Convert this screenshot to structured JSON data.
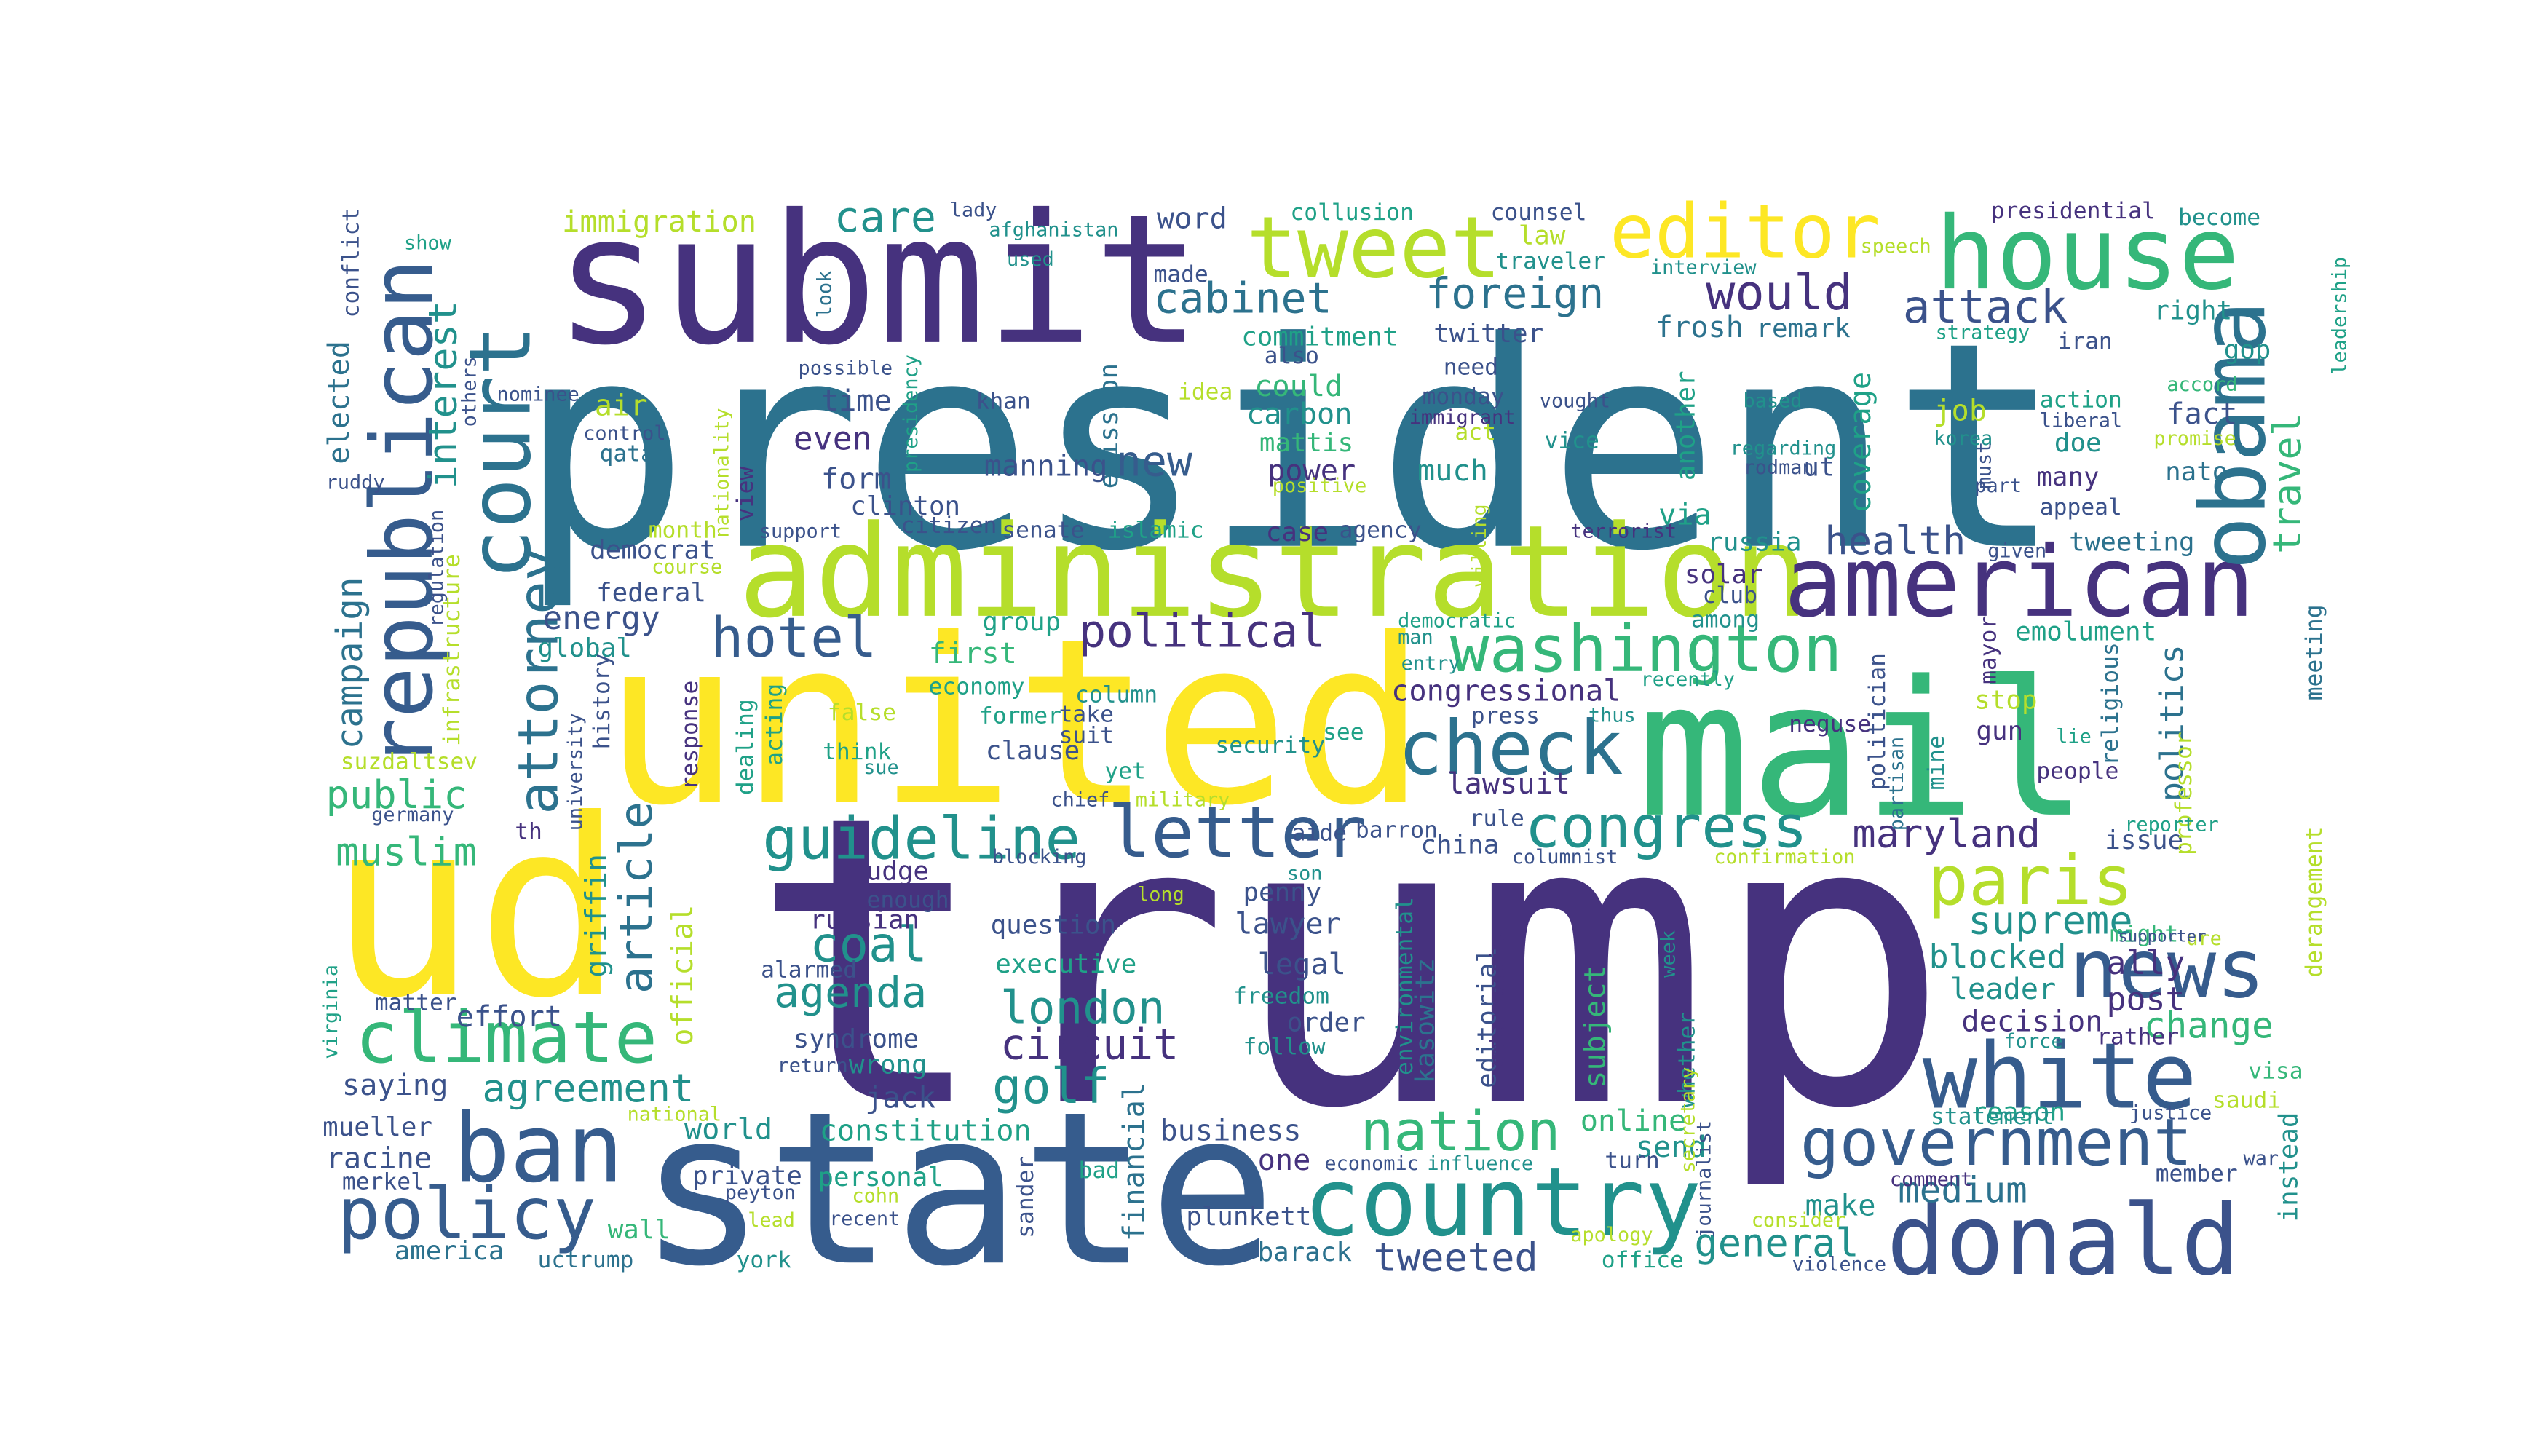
{
  "palette": {
    "dark_purple": "#46327e",
    "indigo": "#3b528b",
    "blue": "#365c8d",
    "steel": "#2c728e",
    "teal": "#21918c",
    "green_teal": "#1fa187",
    "green": "#35b779",
    "lime": "#6ece58",
    "yellow_green": "#b5de2b",
    "yellow": "#fde725"
  },
  "words": [
    {
      "text": "trump"
    },
    {
      "text": "president"
    },
    {
      "text": "united"
    },
    {
      "text": "state"
    },
    {
      "text": "ud"
    },
    {
      "text": "submit"
    },
    {
      "text": "mail"
    },
    {
      "text": "administration"
    },
    {
      "text": "american"
    },
    {
      "text": "house"
    },
    {
      "text": "obama"
    },
    {
      "text": "donald"
    },
    {
      "text": "white"
    },
    {
      "text": "news"
    },
    {
      "text": "country"
    },
    {
      "text": "republican"
    },
    {
      "text": "court"
    },
    {
      "text": "tweet"
    },
    {
      "text": "editor"
    },
    {
      "text": "ban"
    },
    {
      "text": "climate"
    },
    {
      "text": "policy"
    },
    {
      "text": "government"
    },
    {
      "text": "letter"
    },
    {
      "text": "check"
    },
    {
      "text": "washington"
    },
    {
      "text": "paris"
    },
    {
      "text": "guideline"
    },
    {
      "text": "congress"
    },
    {
      "text": "attorney"
    },
    {
      "text": "nation"
    },
    {
      "text": "hotel"
    },
    {
      "text": "would"
    },
    {
      "text": "cabinet"
    },
    {
      "text": "political"
    },
    {
      "text": "coal"
    },
    {
      "text": "golf"
    },
    {
      "text": "london"
    },
    {
      "text": "muslim"
    },
    {
      "text": "agreement"
    },
    {
      "text": "maryland"
    },
    {
      "text": "agenda"
    },
    {
      "text": "circuit"
    },
    {
      "text": "article"
    },
    {
      "text": "supreme"
    },
    {
      "text": "attack"
    },
    {
      "text": "foreign"
    },
    {
      "text": "health"
    },
    {
      "text": "interest"
    },
    {
      "text": "campaign"
    },
    {
      "text": "travel"
    },
    {
      "text": "care"
    },
    {
      "text": "public"
    },
    {
      "text": "tweeted"
    },
    {
      "text": "general"
    },
    {
      "text": "medium"
    },
    {
      "text": "energy"
    },
    {
      "text": "constitution"
    },
    {
      "text": "change"
    },
    {
      "text": "immigration"
    },
    {
      "text": "new"
    },
    {
      "text": "politics"
    },
    {
      "text": "blocked"
    },
    {
      "text": "post"
    },
    {
      "text": "leader"
    },
    {
      "text": "decision"
    },
    {
      "text": "ally"
    },
    {
      "text": "congressional"
    },
    {
      "text": "lawsuit"
    },
    {
      "text": "coverage"
    },
    {
      "text": "emission"
    },
    {
      "text": "commitment"
    },
    {
      "text": "carbon"
    },
    {
      "text": "power"
    },
    {
      "text": "mattis"
    },
    {
      "text": "could"
    },
    {
      "text": "manning"
    },
    {
      "text": "even"
    },
    {
      "text": "time"
    },
    {
      "text": "form"
    },
    {
      "text": "clinton"
    },
    {
      "text": "democrat"
    },
    {
      "text": "federal"
    },
    {
      "text": "global"
    },
    {
      "text": "first"
    },
    {
      "text": "group"
    },
    {
      "text": "word"
    },
    {
      "text": "twitter"
    },
    {
      "text": "frosh"
    },
    {
      "text": "remark"
    },
    {
      "text": "job"
    },
    {
      "text": "fact"
    },
    {
      "text": "right"
    },
    {
      "text": "doe"
    },
    {
      "text": "many"
    },
    {
      "text": "nato"
    },
    {
      "text": "russia"
    },
    {
      "text": "tweeting"
    },
    {
      "text": "emolument"
    },
    {
      "text": "solar"
    },
    {
      "text": "via"
    },
    {
      "text": "much"
    },
    {
      "text": "case"
    },
    {
      "text": "effort"
    },
    {
      "text": "saying"
    },
    {
      "text": "mueller"
    },
    {
      "text": "racine"
    },
    {
      "text": "merkel"
    },
    {
      "text": "america"
    },
    {
      "text": "uctrump"
    },
    {
      "text": "wall"
    },
    {
      "text": "york"
    },
    {
      "text": "world"
    },
    {
      "text": "business"
    },
    {
      "text": "online"
    },
    {
      "text": "send"
    },
    {
      "text": "make"
    },
    {
      "text": "one"
    },
    {
      "text": "barack"
    },
    {
      "text": "plunkett"
    },
    {
      "text": "sander"
    },
    {
      "text": "financial"
    },
    {
      "text": "personal"
    },
    {
      "text": "private"
    },
    {
      "text": "syndrome"
    },
    {
      "text": "wrong"
    },
    {
      "text": "jack"
    },
    {
      "text": "question"
    },
    {
      "text": "executive"
    },
    {
      "text": "russian"
    },
    {
      "text": "judge"
    },
    {
      "text": "enough"
    },
    {
      "text": "lawyer"
    },
    {
      "text": "penny"
    },
    {
      "text": "legal"
    },
    {
      "text": "order"
    },
    {
      "text": "freedom"
    },
    {
      "text": "follow"
    },
    {
      "text": "griffin"
    },
    {
      "text": "official"
    },
    {
      "text": "subject"
    },
    {
      "text": "editorial"
    },
    {
      "text": "whether"
    },
    {
      "text": "kasowitz"
    },
    {
      "text": "china"
    },
    {
      "text": "rule"
    },
    {
      "text": "barron"
    },
    {
      "text": "aide"
    },
    {
      "text": "security"
    },
    {
      "text": "press"
    },
    {
      "text": "see"
    },
    {
      "text": "stop"
    },
    {
      "text": "gun"
    },
    {
      "text": "people"
    },
    {
      "text": "issue"
    },
    {
      "text": "rather"
    },
    {
      "text": "might"
    },
    {
      "text": "reason"
    },
    {
      "text": "statement"
    },
    {
      "text": "comment"
    },
    {
      "text": "instead"
    },
    {
      "text": "visa"
    },
    {
      "text": "saudi"
    },
    {
      "text": "appeal"
    },
    {
      "text": "action"
    },
    {
      "text": "accord"
    },
    {
      "text": "promise"
    },
    {
      "text": "gop"
    },
    {
      "text": "iran"
    },
    {
      "text": "become"
    },
    {
      "text": "presidential"
    },
    {
      "text": "leadership"
    },
    {
      "text": "counsel"
    },
    {
      "text": "law"
    },
    {
      "text": "traveler"
    },
    {
      "text": "need"
    },
    {
      "text": "monday"
    },
    {
      "text": "act"
    },
    {
      "text": "vice"
    },
    {
      "text": "vought"
    },
    {
      "text": "terrorist"
    },
    {
      "text": "islamic"
    },
    {
      "text": "senate"
    },
    {
      "text": "agency"
    },
    {
      "text": "democratic"
    },
    {
      "text": "man"
    },
    {
      "text": "club"
    },
    {
      "text": "among"
    },
    {
      "text": "neguse"
    },
    {
      "text": "thus"
    },
    {
      "text": "recently"
    },
    {
      "text": "mayor"
    },
    {
      "text": "partisan"
    },
    {
      "text": "politician"
    },
    {
      "text": "mine"
    },
    {
      "text": "religious"
    },
    {
      "text": "lie"
    },
    {
      "text": "professor"
    },
    {
      "text": "meeting"
    },
    {
      "text": "derangement"
    },
    {
      "text": "reporter"
    },
    {
      "text": "confirmation"
    },
    {
      "text": "ure"
    },
    {
      "text": "supporter"
    },
    {
      "text": "fight"
    },
    {
      "text": "journalist"
    },
    {
      "text": "secretary"
    },
    {
      "text": "week"
    },
    {
      "text": "apology"
    },
    {
      "text": "office"
    },
    {
      "text": "turn"
    },
    {
      "text": "violence"
    },
    {
      "text": "consider"
    },
    {
      "text": "member"
    },
    {
      "text": "war"
    },
    {
      "text": "justice"
    },
    {
      "text": "force"
    },
    {
      "text": "influence"
    },
    {
      "text": "economic"
    },
    {
      "text": "embarrassing"
    },
    {
      "text": "environmental"
    },
    {
      "text": "bad"
    },
    {
      "text": "recent"
    },
    {
      "text": "cohn"
    },
    {
      "text": "lead"
    },
    {
      "text": "peyton"
    },
    {
      "text": "national"
    },
    {
      "text": "course"
    },
    {
      "text": "regulation"
    },
    {
      "text": "infrastructure"
    },
    {
      "text": "elected"
    },
    {
      "text": "conflict"
    },
    {
      "text": "show"
    },
    {
      "text": "ruddy"
    },
    {
      "text": "others"
    },
    {
      "text": "nominee"
    },
    {
      "text": "control"
    },
    {
      "text": "qatar"
    },
    {
      "text": "air"
    },
    {
      "text": "month"
    },
    {
      "text": "university"
    },
    {
      "text": "history"
    },
    {
      "text": "response"
    },
    {
      "text": "suzdaltsev"
    },
    {
      "text": "germany"
    },
    {
      "text": "matter"
    },
    {
      "text": "virginia"
    },
    {
      "text": "th"
    },
    {
      "text": "nationality"
    },
    {
      "text": "presidency"
    },
    {
      "text": "possible"
    },
    {
      "text": "look"
    },
    {
      "text": "view"
    },
    {
      "text": "support"
    },
    {
      "text": "citizen"
    },
    {
      "text": "economy"
    },
    {
      "text": "former"
    },
    {
      "text": "false"
    },
    {
      "text": "think"
    },
    {
      "text": "sue"
    },
    {
      "text": "clause"
    },
    {
      "text": "acting"
    },
    {
      "text": "dealing"
    },
    {
      "text": "column"
    },
    {
      "text": "take"
    },
    {
      "text": "suit"
    },
    {
      "text": "yet"
    },
    {
      "text": "chief"
    },
    {
      "text": "military"
    },
    {
      "text": "blocking"
    },
    {
      "text": "alarmed"
    },
    {
      "text": "return"
    },
    {
      "text": "son"
    },
    {
      "text": "long"
    },
    {
      "text": "columnist"
    },
    {
      "text": "entry"
    },
    {
      "text": "willing"
    },
    {
      "text": "positive"
    },
    {
      "text": "immigrant"
    },
    {
      "text": "idea"
    },
    {
      "text": "khan"
    },
    {
      "text": "also"
    },
    {
      "text": "made"
    },
    {
      "text": "used"
    },
    {
      "text": "lady"
    },
    {
      "text": "afghanistan"
    },
    {
      "text": "collusion"
    },
    {
      "text": "interview"
    },
    {
      "text": "speech"
    },
    {
      "text": "strategy"
    },
    {
      "text": "based"
    },
    {
      "text": "korea"
    },
    {
      "text": "liberal"
    },
    {
      "text": "regarding"
    },
    {
      "text": "rodman"
    },
    {
      "text": "ut"
    },
    {
      "text": "another"
    },
    {
      "text": "must"
    },
    {
      "text": "part"
    },
    {
      "text": "given"
    }
  ]
}
